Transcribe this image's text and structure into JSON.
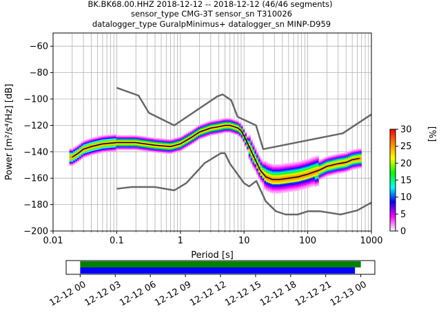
{
  "chart_data": [
    {
      "type": "heatmap",
      "title": "BK.BK68.00.HHZ   2018-12-12 -- 2018-12-12  (46/46 segments)",
      "subtitle_1": "sensor_type CMG-3T sensor_sn T310026",
      "subtitle_2": "datalogger_type GuralpMinimus+ datalogger_sn MINP-D959",
      "xlabel": "Period [s]",
      "ylabel": "Power [m²/s⁴/Hz] [dB]",
      "xscale": "log",
      "xlim": [
        0.01,
        1000
      ],
      "ylim": [
        -200,
        -50
      ],
      "x_ticks": [
        0.01,
        0.1,
        1,
        10,
        100,
        1000
      ],
      "x_tick_labels": [
        "0.01",
        "0.1",
        "1",
        "10",
        "100",
        "1000"
      ],
      "y_ticks": [
        -200,
        -180,
        -160,
        -140,
        -120,
        -100,
        -80,
        -60
      ],
      "y_tick_labels": [
        "−200",
        "−180",
        "−160",
        "−140",
        "−120",
        "−100",
        "−80",
        "−60"
      ],
      "grid": true,
      "colorbar": {
        "label": "[%]",
        "range": [
          0,
          30
        ],
        "ticks": [
          0,
          5,
          10,
          15,
          20,
          25,
          30
        ],
        "tick_labels": [
          "0",
          "5",
          "10",
          "15",
          "20",
          "25",
          "30"
        ],
        "colors": [
          "#ffffff",
          "#ff00ff",
          "#0000ff",
          "#00ffff",
          "#00ff00",
          "#ffff00",
          "#ff8800",
          "#ff0000"
        ]
      },
      "series": [
        {
          "role": "noise model high",
          "color": "#666666",
          "x": [
            0.1,
            0.22,
            0.32,
            0.8,
            3.8,
            4.6,
            6.3,
            7.9,
            15.4,
            20,
            354,
            10000
          ],
          "y": [
            -91.5,
            -97.4,
            -110.5,
            -120,
            -98,
            -96.5,
            -101,
            -113.5,
            -120,
            -138,
            -126,
            -80
          ]
        },
        {
          "role": "noise model low",
          "color": "#666666",
          "x": [
            0.1,
            0.17,
            0.4,
            0.8,
            1.24,
            2.4,
            4.3,
            5,
            6,
            10,
            12,
            15.6,
            21.9,
            31.6,
            45,
            70,
            101,
            154,
            328,
            600,
            10000
          ],
          "y": [
            -168,
            -166.7,
            -166.7,
            -169.2,
            -163.7,
            -148.6,
            -141.1,
            -141.1,
            -149,
            -163.8,
            -166.2,
            -162.1,
            -177.5,
            -185,
            -187.5,
            -187.5,
            -185,
            -185,
            -187.5,
            -184.4,
            -151.5
          ]
        },
        {
          "role": "mode",
          "color": "#000000",
          "x": [
            0.02,
            0.025,
            0.03,
            0.04,
            0.06,
            0.1,
            0.2,
            0.4,
            0.7,
            1,
            1.5,
            2,
            3,
            4,
            5,
            6,
            7,
            8,
            9,
            10,
            12,
            15,
            18,
            22,
            28,
            35,
            50,
            70,
            100,
            150,
            200,
            300,
            400,
            500,
            650
          ],
          "y": [
            -144,
            -141,
            -138,
            -136,
            -134,
            -133,
            -133,
            -135,
            -136,
            -134,
            -129,
            -125,
            -122,
            -121,
            -120,
            -120,
            -121,
            -122,
            -124,
            -128,
            -136,
            -146,
            -154,
            -159,
            -161,
            -161,
            -160,
            -159,
            -157,
            -154,
            -151,
            -149,
            -148,
            -146,
            -145
          ]
        }
      ],
      "psd_mode": {
        "x": [
          0.02,
          0.025,
          0.03,
          0.04,
          0.06,
          0.1,
          0.2,
          0.4,
          0.7,
          1,
          1.5,
          2,
          3,
          4,
          5,
          6,
          7,
          8,
          9,
          10,
          12,
          15,
          18,
          22,
          28,
          35,
          50,
          70,
          100,
          150,
          200,
          300,
          400,
          500,
          650
        ],
        "y": [
          -144,
          -141,
          -138,
          -136,
          -134,
          -133,
          -133,
          -135,
          -136,
          -134,
          -129,
          -125,
          -122,
          -121,
          -120,
          -120,
          -121,
          -122,
          -124,
          -128,
          -136,
          -146,
          -154,
          -159,
          -161,
          -161,
          -160,
          -159,
          -157,
          -154,
          -151,
          -149,
          -148,
          -146,
          -145
        ]
      },
      "psd_density": [
        {
          "x": 0.03,
          "upper": -132,
          "lower": -142,
          "x_end": 0.04
        },
        {
          "x": 0.1,
          "upper": -129,
          "lower": -141,
          "x_end": 0.2
        },
        {
          "x": 0.5,
          "upper": -130,
          "lower": -139,
          "x_end": 1.0
        },
        {
          "x": 2.5,
          "upper": -118,
          "lower": -127,
          "x_end": 6.0
        },
        {
          "x": 10,
          "upper": -125,
          "lower": -135,
          "x_end": 15
        },
        {
          "x": 18,
          "upper": -145,
          "lower": -167,
          "x_end": 30
        },
        {
          "x": 40,
          "upper": -145,
          "lower": -178,
          "x_end": 120
        },
        {
          "x": 150,
          "upper": -143,
          "lower": -162,
          "x_end": 300
        },
        {
          "x": 400,
          "upper": -138,
          "lower": -153,
          "x_end": 650
        }
      ]
    },
    {
      "type": "timeline",
      "tick_labels": [
        "12-12 00",
        "12-12 03",
        "12-12 06",
        "12-12 09",
        "12-12 12",
        "12-12 15",
        "12-12 18",
        "12-12 21",
        "12-13 00"
      ],
      "ticks_hours": [
        0,
        3,
        6,
        9,
        12,
        15,
        18,
        21,
        24
      ],
      "xlim_hours": [
        -1.2,
        25.2
      ],
      "bars": [
        {
          "color": "#008000",
          "start_hours": 0,
          "end_hours": 24.0
        },
        {
          "color": "#0000ff",
          "start_hours": 0,
          "end_hours": 23.5
        }
      ]
    }
  ]
}
